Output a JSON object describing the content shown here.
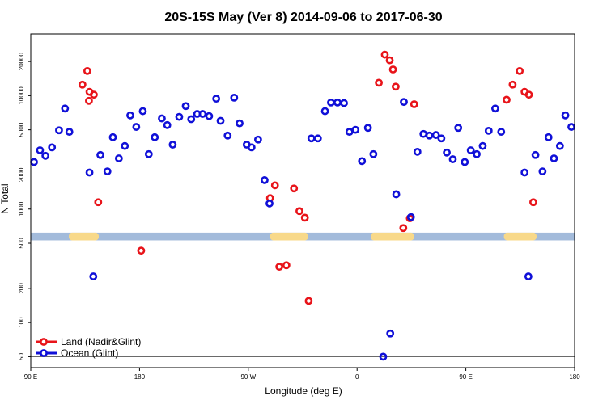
{
  "chart_data": {
    "type": "scatter",
    "title": "20S-15S May (Ver 8)   2014-09-06 to 2017-06-30",
    "xlabel": "Longitude (deg E)",
    "ylabel": "N Total",
    "y_scale": "log",
    "xlim": [
      0,
      1
    ],
    "ylim": [
      40,
      35000
    ],
    "x_ticks": [
      {
        "pos": 0.0,
        "label": "90 E"
      },
      {
        "pos": 0.2,
        "label": "180"
      },
      {
        "pos": 0.4,
        "label": "90 W"
      },
      {
        "pos": 0.6,
        "label": "0"
      },
      {
        "pos": 0.8,
        "label": "90 E"
      },
      {
        "pos": 1.0,
        "label": "180"
      }
    ],
    "y_ticks": [
      50,
      100,
      200,
      500,
      1000,
      2000,
      5000,
      10000,
      20000
    ],
    "reference_line": 50,
    "band": {
      "y_low": 530,
      "y_high": 620,
      "default_color": "#a3bbdb",
      "highlight_color": "#f8d98a",
      "highlight_ranges": [
        [
          0.07,
          0.125
        ],
        [
          0.44,
          0.51
        ],
        [
          0.625,
          0.705
        ],
        [
          0.87,
          0.93
        ]
      ]
    },
    "legend": {
      "position": "bottom-left",
      "entries": [
        {
          "name": "Land (Nadir&Glint)",
          "color": "#e8141a"
        },
        {
          "name": "Ocean (Glint)",
          "color": "#1010d8"
        }
      ]
    },
    "series": [
      {
        "name": "Land (Nadir&Glint)",
        "color": "#e8141a",
        "points": [
          [
            0.095,
            12500
          ],
          [
            0.104,
            16500
          ],
          [
            0.107,
            9000
          ],
          [
            0.108,
            10800
          ],
          [
            0.116,
            10200
          ],
          [
            0.124,
            1150
          ],
          [
            0.203,
            430
          ],
          [
            0.44,
            1250
          ],
          [
            0.449,
            1620
          ],
          [
            0.457,
            310
          ],
          [
            0.47,
            320
          ],
          [
            0.484,
            1520
          ],
          [
            0.494,
            960
          ],
          [
            0.504,
            840
          ],
          [
            0.511,
            155
          ],
          [
            0.64,
            13000
          ],
          [
            0.651,
            23000
          ],
          [
            0.66,
            20500
          ],
          [
            0.666,
            17000
          ],
          [
            0.671,
            12000
          ],
          [
            0.685,
            680
          ],
          [
            0.697,
            830
          ],
          [
            0.705,
            8400
          ],
          [
            0.875,
            9200
          ],
          [
            0.886,
            12500
          ],
          [
            0.899,
            16500
          ],
          [
            0.908,
            10800
          ],
          [
            0.916,
            10200
          ],
          [
            0.924,
            1150
          ]
        ]
      },
      {
        "name": "Ocean (Glint)",
        "color": "#1010d8",
        "points": [
          [
            0.006,
            2600
          ],
          [
            0.017,
            3300
          ],
          [
            0.027,
            2950
          ],
          [
            0.039,
            3500
          ],
          [
            0.052,
            4950
          ],
          [
            0.063,
            7700
          ],
          [
            0.071,
            4800
          ],
          [
            0.108,
            2100
          ],
          [
            0.115,
            255
          ],
          [
            0.128,
            3000
          ],
          [
            0.141,
            2150
          ],
          [
            0.151,
            4300
          ],
          [
            0.162,
            2800
          ],
          [
            0.173,
            3600
          ],
          [
            0.183,
            6700
          ],
          [
            0.194,
            5300
          ],
          [
            0.206,
            7300
          ],
          [
            0.217,
            3050
          ],
          [
            0.228,
            4300
          ],
          [
            0.241,
            6300
          ],
          [
            0.251,
            5500
          ],
          [
            0.261,
            3700
          ],
          [
            0.273,
            6500
          ],
          [
            0.285,
            8100
          ],
          [
            0.295,
            6200
          ],
          [
            0.306,
            6900
          ],
          [
            0.316,
            6900
          ],
          [
            0.328,
            6600
          ],
          [
            0.341,
            9400
          ],
          [
            0.349,
            6000
          ],
          [
            0.362,
            4450
          ],
          [
            0.374,
            9600
          ],
          [
            0.384,
            5700
          ],
          [
            0.397,
            3700
          ],
          [
            0.406,
            3500
          ],
          [
            0.418,
            4100
          ],
          [
            0.43,
            1800
          ],
          [
            0.439,
            1120
          ],
          [
            0.516,
            4200
          ],
          [
            0.528,
            4200
          ],
          [
            0.541,
            7300
          ],
          [
            0.552,
            8700
          ],
          [
            0.564,
            8700
          ],
          [
            0.576,
            8600
          ],
          [
            0.586,
            4800
          ],
          [
            0.597,
            5000
          ],
          [
            0.609,
            2650
          ],
          [
            0.62,
            5200
          ],
          [
            0.63,
            3050
          ],
          [
            0.648,
            50
          ],
          [
            0.661,
            80
          ],
          [
            0.672,
            1350
          ],
          [
            0.686,
            8800
          ],
          [
            0.699,
            850
          ],
          [
            0.711,
            3200
          ],
          [
            0.722,
            4600
          ],
          [
            0.733,
            4450
          ],
          [
            0.745,
            4500
          ],
          [
            0.755,
            4200
          ],
          [
            0.765,
            3150
          ],
          [
            0.776,
            2750
          ],
          [
            0.786,
            5200
          ],
          [
            0.798,
            2600
          ],
          [
            0.809,
            3300
          ],
          [
            0.82,
            3050
          ],
          [
            0.831,
            3600
          ],
          [
            0.842,
            4900
          ],
          [
            0.854,
            7700
          ],
          [
            0.865,
            4800
          ],
          [
            0.908,
            2100
          ],
          [
            0.915,
            255
          ],
          [
            0.928,
            3000
          ],
          [
            0.941,
            2150
          ],
          [
            0.952,
            4300
          ],
          [
            0.962,
            2800
          ],
          [
            0.973,
            3600
          ],
          [
            0.983,
            6700
          ],
          [
            0.994,
            5300
          ]
        ]
      }
    ]
  }
}
